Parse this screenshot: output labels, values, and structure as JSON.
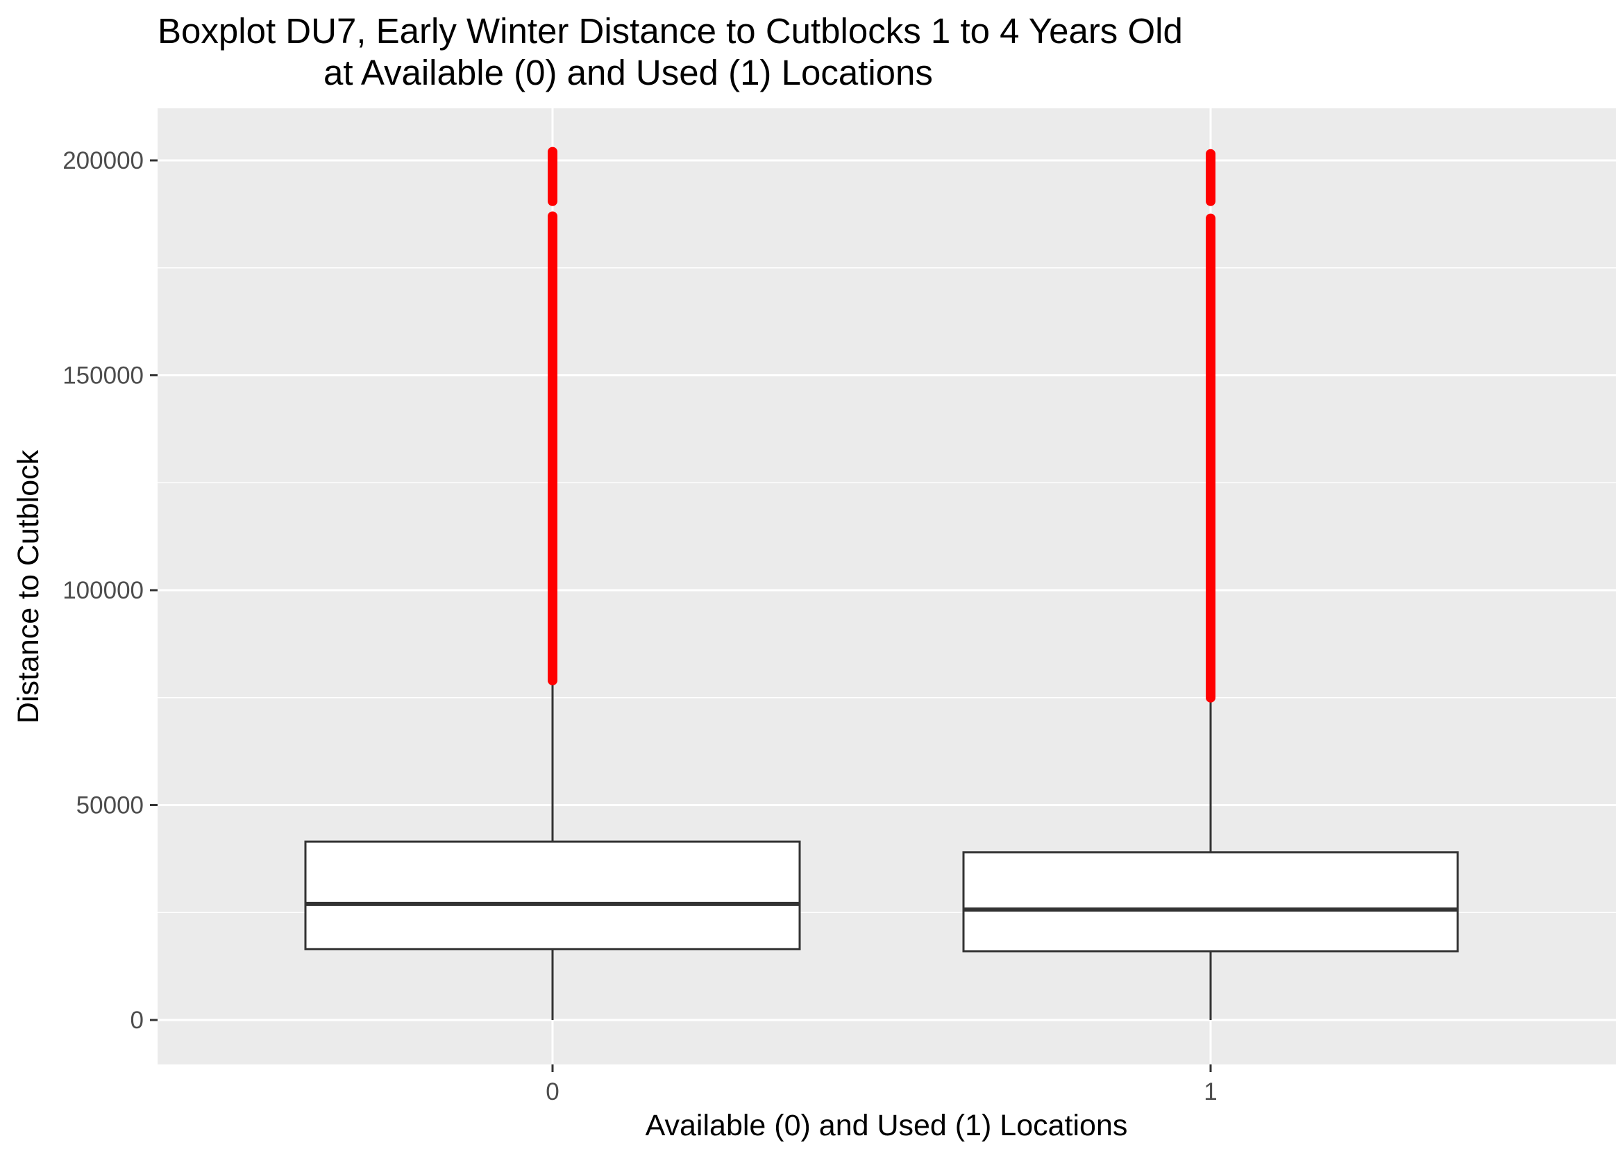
{
  "chart_data": {
    "type": "boxplot",
    "title": [
      "Boxplot DU7, Early Winter Distance to Cutblocks 1 to 4 Years Old",
      "at Available (0) and Used (1) Locations"
    ],
    "xlabel": "Available (0) and Used (1) Locations",
    "ylabel": "Distance to Cutblock",
    "ylim": [
      -10000,
      212000
    ],
    "yticks": [
      0,
      50000,
      100000,
      150000,
      200000
    ],
    "ytick_labels": [
      "0",
      "50000",
      "100000",
      "150000",
      "200000"
    ],
    "grid": true,
    "categories": [
      "0",
      "1"
    ],
    "outlier_color": "#ff0000",
    "panel_color": "#ebebeb",
    "boxes": [
      {
        "category": "0",
        "whisker_low": 0,
        "q1": 16500,
        "median": 27000,
        "q3": 41500,
        "whisker_high": 78500,
        "outlier_ranges": [
          [
            79000,
            187000
          ],
          [
            190500,
            202000
          ]
        ]
      },
      {
        "category": "1",
        "whisker_low": 0,
        "q1": 16000,
        "median": 25700,
        "q3": 39000,
        "whisker_high": 74500,
        "outlier_ranges": [
          [
            75000,
            186500
          ],
          [
            190500,
            201500
          ]
        ]
      }
    ]
  }
}
